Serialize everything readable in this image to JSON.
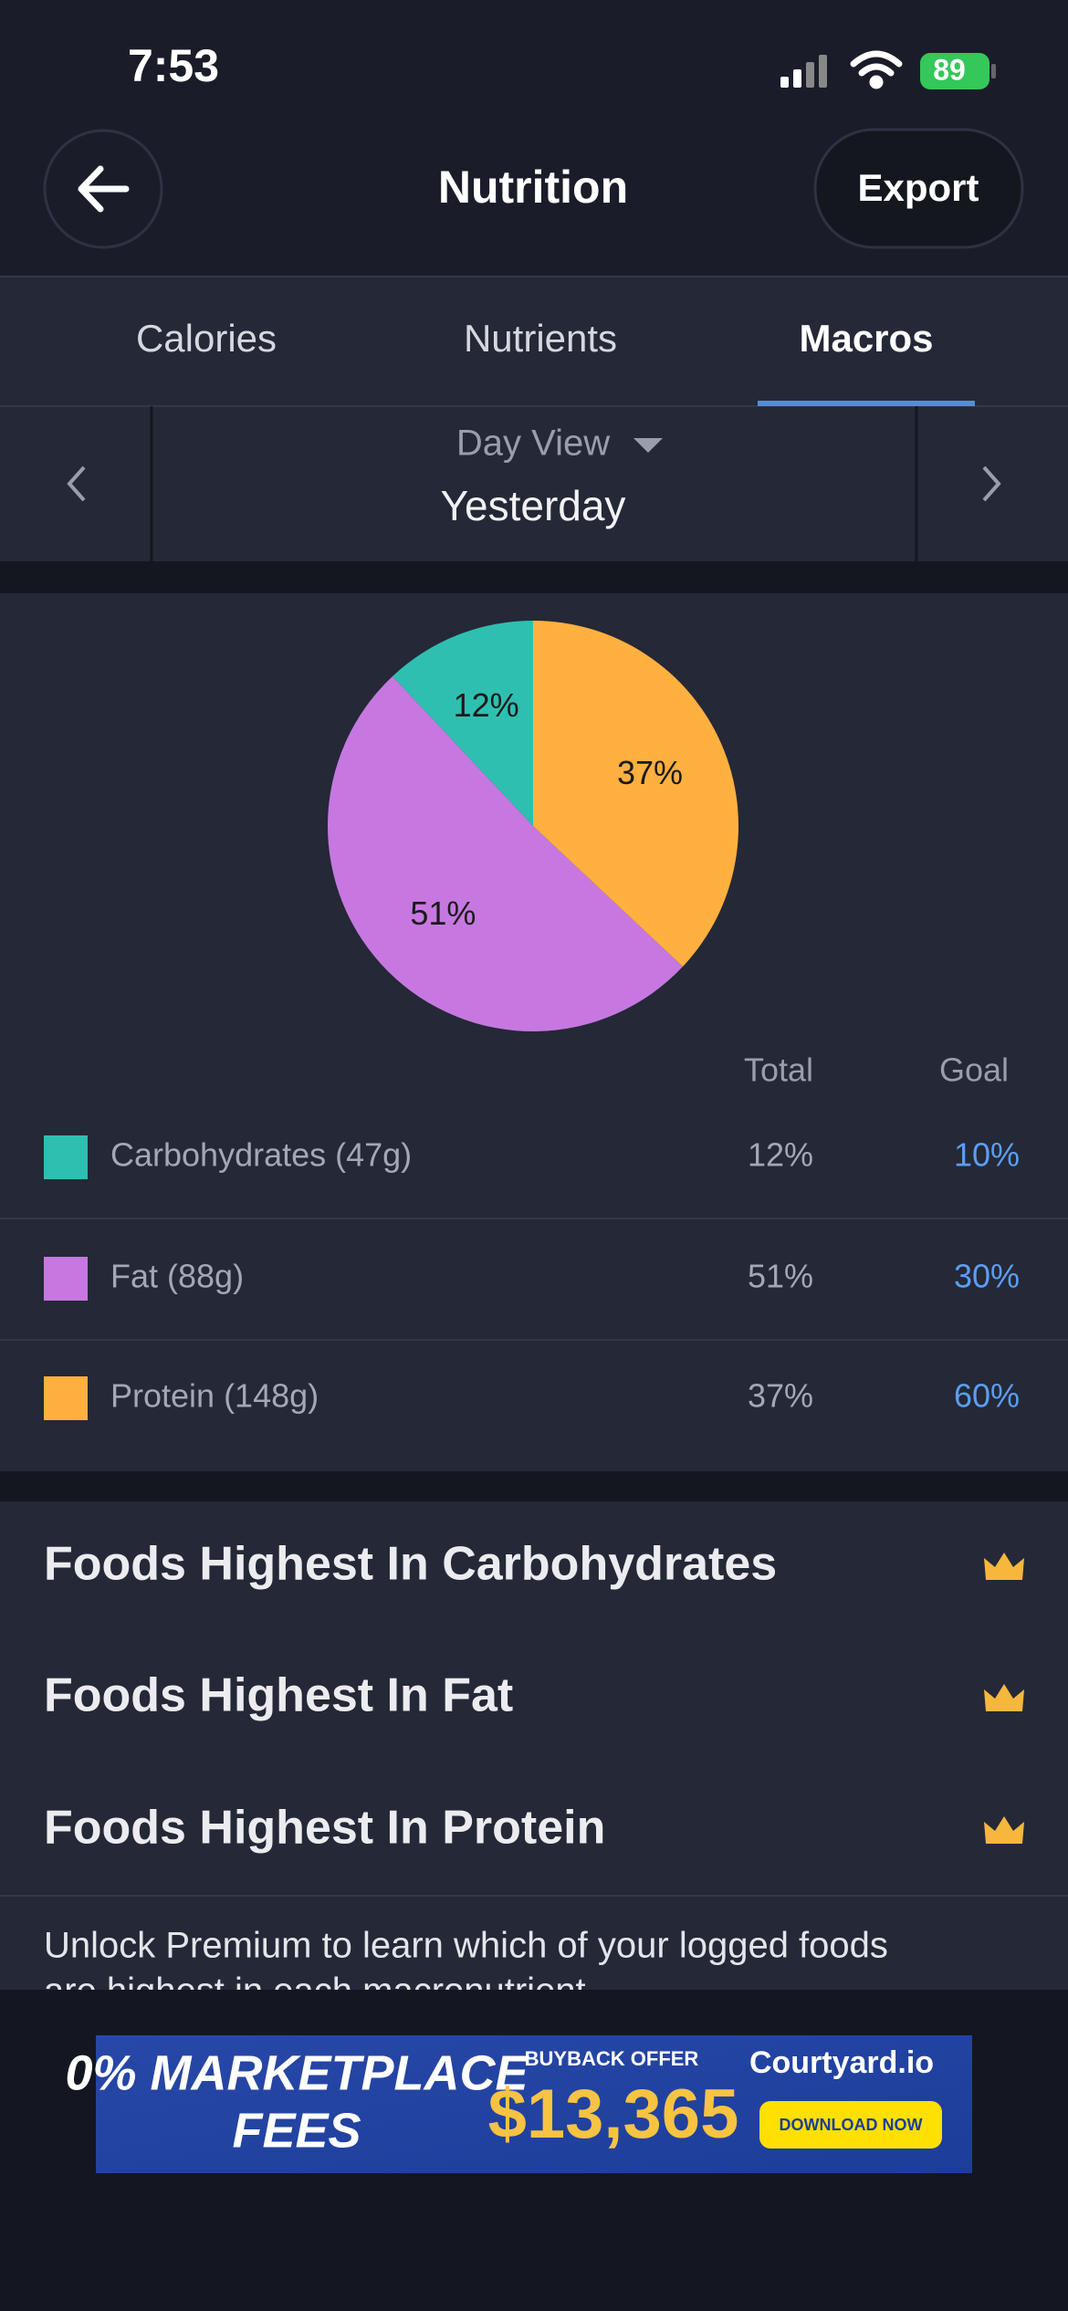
{
  "status_bar": {
    "time": "7:53",
    "battery": "89"
  },
  "header": {
    "title": "Nutrition",
    "export": "Export"
  },
  "tabs": [
    "Calories",
    "Nutrients",
    "Macros"
  ],
  "active_tab": 2,
  "date_nav": {
    "view": "Day View",
    "date": "Yesterday"
  },
  "chart_data": {
    "type": "pie",
    "categories": [
      "Carbohydrates (47g)",
      "Fat (88g)",
      "Protein (148g)"
    ],
    "values": [
      12,
      51,
      37
    ],
    "value_labels": [
      "12%",
      "51%",
      "37%"
    ],
    "colors": [
      "#2fbfb1",
      "#c678e0",
      "#ffb03f"
    ]
  },
  "table": {
    "columns": [
      "Total",
      "Goal"
    ],
    "rows": [
      [
        "12%",
        "10%"
      ],
      [
        "51%",
        "30%"
      ],
      [
        "37%",
        "60%"
      ]
    ]
  },
  "sections": [
    "Foods Highest In Carbohydrates",
    "Foods Highest In Fat",
    "Foods Highest In Protein"
  ],
  "premium_text": [
    "Unlock Premium to learn which of your logged foods",
    "are highest in each macronutrient."
  ],
  "ad": {
    "headline": [
      "0% MARKETPLACE",
      "FEES"
    ],
    "offer": "BUYBACK OFFER",
    "amount": "$13,365",
    "brand": "Courtyard.io",
    "cta": "DOWNLOAD NOW"
  }
}
